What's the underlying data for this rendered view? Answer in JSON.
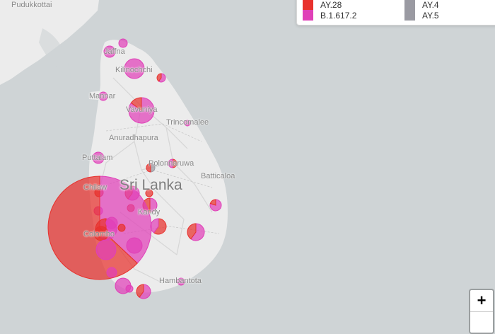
{
  "map": {
    "country_label": "Sri Lanka",
    "places": [
      {
        "id": "pudukkottai",
        "name": "Pudukkottai"
      },
      {
        "id": "jaffna",
        "name": "Jaffna"
      },
      {
        "id": "kilinochchi",
        "name": "Kilinochchi"
      },
      {
        "id": "mannar",
        "name": "Mannar"
      },
      {
        "id": "vavuniya",
        "name": "Vavuniya"
      },
      {
        "id": "trincomalee",
        "name": "Trincomalee"
      },
      {
        "id": "anuradhapura",
        "name": "Anuradhapura"
      },
      {
        "id": "puttalam",
        "name": "Puttalam"
      },
      {
        "id": "polonnaruwa",
        "name": "Polonnaruwa"
      },
      {
        "id": "batticaloa",
        "name": "Batticaloa"
      },
      {
        "id": "chilaw",
        "name": "Chilaw"
      },
      {
        "id": "kandy",
        "name": "Kandy"
      },
      {
        "id": "colombo",
        "name": "Colombo"
      },
      {
        "id": "hambantota",
        "name": "Hambantota"
      }
    ],
    "colors": {
      "sea": "#cfd4d6",
      "land": "#ececec",
      "ay28": "#e8312d",
      "b16172": "#e040b8"
    }
  },
  "legend": {
    "items": [
      {
        "label": "AY.28",
        "color": "#e8312d"
      },
      {
        "label": "B.1.617.2",
        "color": "#e040b8"
      },
      {
        "label": "AY.4",
        "color": "#9a9aa2"
      },
      {
        "label": "AY.5",
        "color": "#9a9aa2"
      }
    ]
  },
  "controls": {
    "zoom_in": "+"
  }
}
